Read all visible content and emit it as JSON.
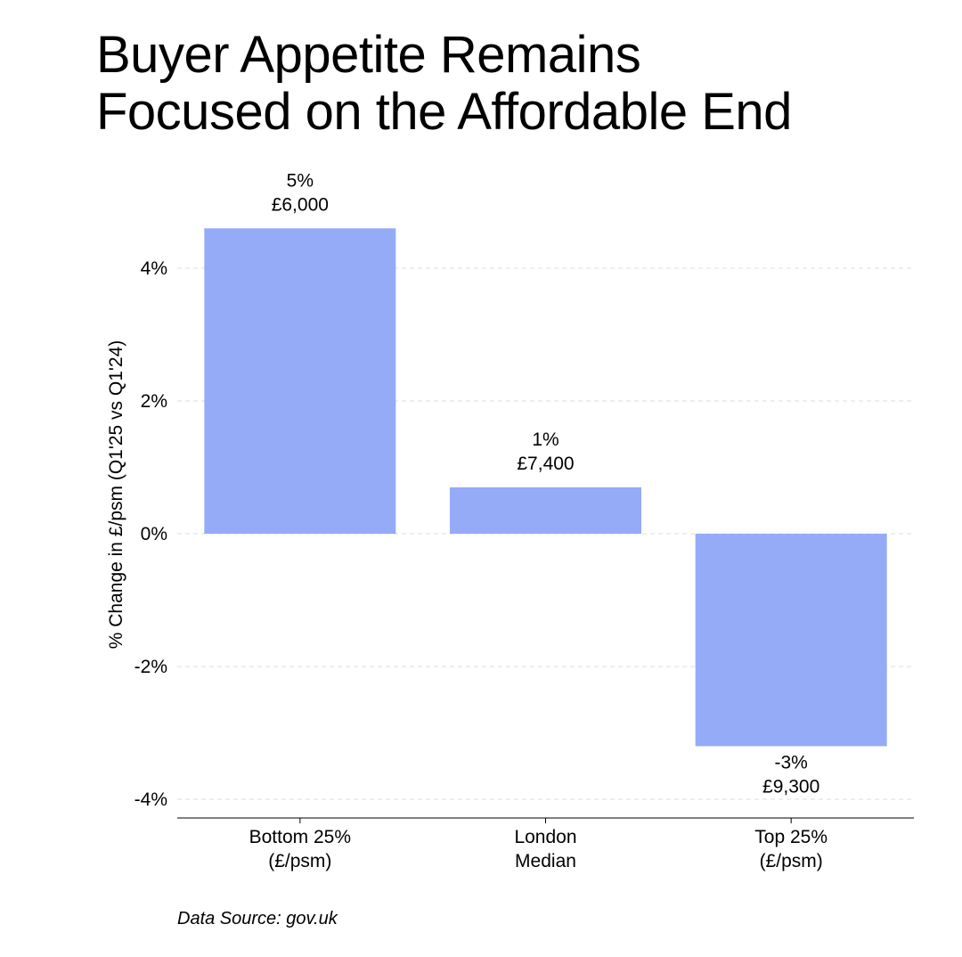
{
  "title_lines": [
    "Buyer Appetite Remains",
    "Focused on the Affordable End"
  ],
  "source": "Data Source: gov.uk",
  "colors": {
    "bar": "#95abf7",
    "grid": "#dddddd",
    "axis": "#000000",
    "text": "#000000"
  },
  "chart_data": {
    "type": "bar",
    "title": "Buyer Appetite Remains Focused on the Affordable End",
    "categories": [
      [
        "Bottom 25%",
        "(£/psm)"
      ],
      [
        "London",
        "Median"
      ],
      [
        "Top 25%",
        "(£/psm)"
      ]
    ],
    "values": [
      4.6,
      0.7,
      -3.2
    ],
    "data_labels": [
      [
        "5%",
        "£6,000"
      ],
      [
        "1%",
        "£7,400"
      ],
      [
        "-3%",
        "£9,300"
      ]
    ],
    "ylabel": "% Change in £/psm (Q1'25 vs Q1'24)",
    "xlabel": "",
    "ylim": [
      -4.3,
      4.6
    ],
    "yticks": [
      4,
      2,
      0,
      -2,
      -4
    ],
    "ytick_labels": [
      "4%",
      "2%",
      "0%",
      "-2%",
      "-4%"
    ],
    "grid": true
  }
}
